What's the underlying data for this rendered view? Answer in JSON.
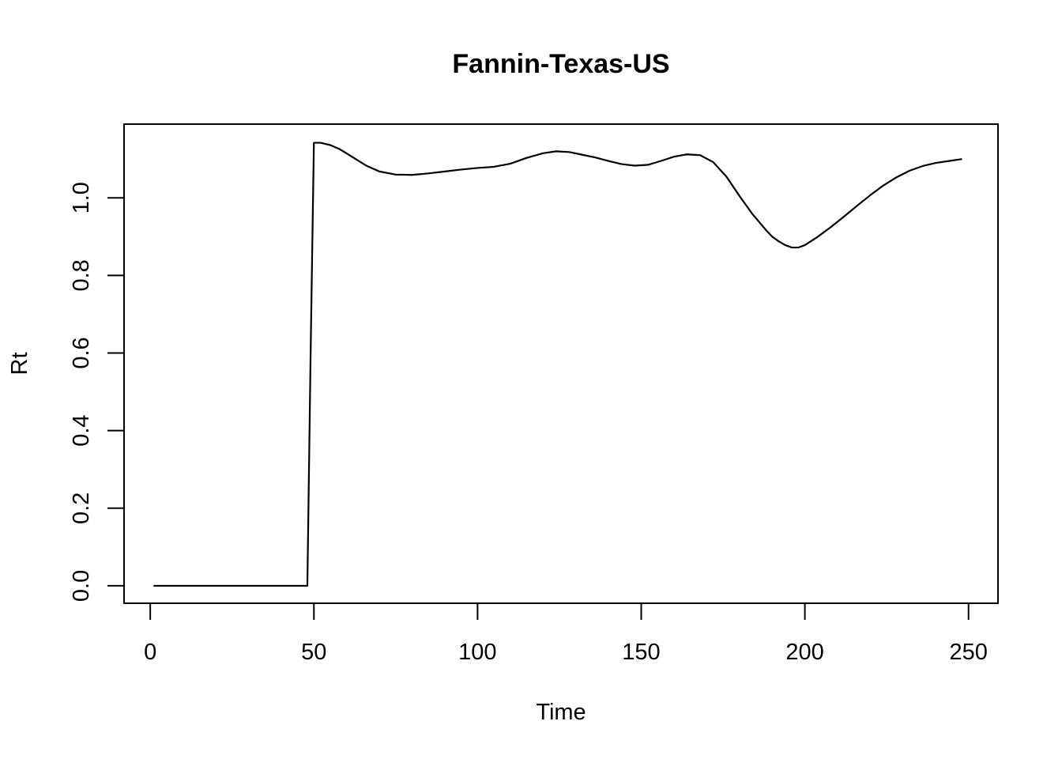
{
  "chart_data": {
    "type": "line",
    "title": "Fannin-Texas-US",
    "xlabel": "Time",
    "ylabel": "Rt",
    "xlim": [
      -8,
      259
    ],
    "ylim": [
      -0.045,
      1.19
    ],
    "x_ticks": [
      0,
      50,
      100,
      150,
      200,
      250
    ],
    "y_ticks": [
      0.0,
      0.2,
      0.4,
      0.6,
      0.8,
      1.0
    ],
    "x_tick_labels": [
      "0",
      "50",
      "100",
      "150",
      "200",
      "250"
    ],
    "y_tick_labels": [
      "0.0",
      "0.2",
      "0.4",
      "0.6",
      "0.8",
      "1.0"
    ],
    "grid": false,
    "legend": "none",
    "line_color": "#000000",
    "series": [
      {
        "x": [
          1,
          10,
          20,
          30,
          40,
          47,
          48,
          49,
          50,
          52,
          55,
          58,
          62,
          66,
          70,
          75,
          80,
          85,
          90,
          95,
          100,
          105,
          110,
          115,
          120,
          124,
          128,
          132,
          136,
          140,
          144,
          148,
          152,
          156,
          160,
          164,
          168,
          172,
          176,
          180,
          184,
          188,
          190,
          192,
          194,
          196,
          198,
          200,
          204,
          208,
          212,
          216,
          220,
          224,
          228,
          232,
          236,
          240,
          244,
          248
        ],
        "y": [
          0.0,
          0.0,
          0.0,
          0.0,
          0.0,
          0.0,
          0.0,
          0.6,
          1.142,
          1.142,
          1.136,
          1.125,
          1.104,
          1.083,
          1.068,
          1.06,
          1.059,
          1.063,
          1.068,
          1.073,
          1.077,
          1.08,
          1.088,
          1.103,
          1.115,
          1.12,
          1.118,
          1.111,
          1.104,
          1.095,
          1.087,
          1.083,
          1.085,
          1.095,
          1.106,
          1.112,
          1.11,
          1.092,
          1.055,
          1.005,
          0.958,
          0.918,
          0.9,
          0.888,
          0.878,
          0.872,
          0.872,
          0.878,
          0.9,
          0.925,
          0.952,
          0.98,
          1.007,
          1.032,
          1.053,
          1.07,
          1.082,
          1.09,
          1.095,
          1.1
        ]
      }
    ]
  }
}
